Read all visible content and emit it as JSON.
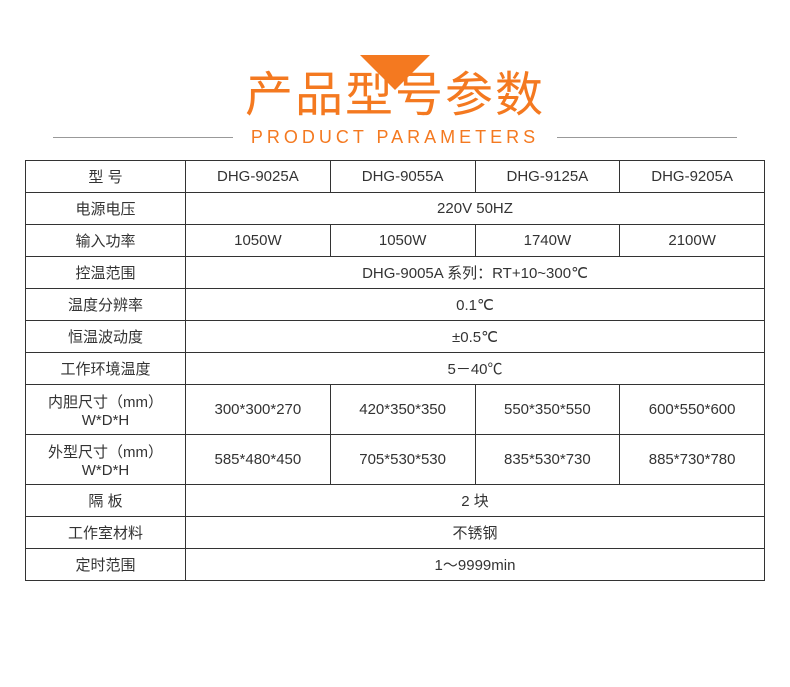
{
  "header": {
    "triangle_color": "#f47920",
    "main_title": "产品型号参数",
    "sub_title": "PRODUCT   PARAMETERS",
    "title_color": "#f47920",
    "main_fontsize": 48,
    "sub_fontsize": 18
  },
  "table": {
    "border_color": "#333333",
    "text_color": "#333333",
    "fontsize": 15,
    "label_col_width": 160,
    "rows": [
      {
        "label": "型 号",
        "cells": [
          "DHG-9025A",
          "DHG-9055A",
          "DHG-9125A",
          "DHG-9205A"
        ],
        "span": false
      },
      {
        "label": "电源电压",
        "cells": [
          "220V  50HZ"
        ],
        "span": true
      },
      {
        "label": "输入功率",
        "cells": [
          "1050W",
          "1050W",
          "1740W",
          "2100W"
        ],
        "span": false
      },
      {
        "label": "控温范围",
        "cells": [
          "DHG-9005A 系列：RT+10~300℃"
        ],
        "span": true
      },
      {
        "label": "温度分辨率",
        "cells": [
          "0.1℃"
        ],
        "span": true
      },
      {
        "label": "恒温波动度",
        "cells": [
          "±0.5℃"
        ],
        "span": true
      },
      {
        "label": "工作环境温度",
        "cells": [
          "5－40℃"
        ],
        "span": true
      },
      {
        "label": "内胆尺寸（mm）\nW*D*H",
        "cells": [
          "300*300*270",
          "420*350*350",
          "550*350*550",
          "600*550*600"
        ],
        "span": false,
        "tall": true
      },
      {
        "label": "外型尺寸（mm）\nW*D*H",
        "cells": [
          "585*480*450",
          "705*530*530",
          "835*530*730",
          "885*730*780"
        ],
        "span": false,
        "tall": true
      },
      {
        "label": "隔 板",
        "cells": [
          "2 块"
        ],
        "span": true
      },
      {
        "label": "工作室材料",
        "cells": [
          "不锈钢"
        ],
        "span": true
      },
      {
        "label": "定时范围",
        "cells": [
          "1～9999min"
        ],
        "span": true
      }
    ]
  }
}
